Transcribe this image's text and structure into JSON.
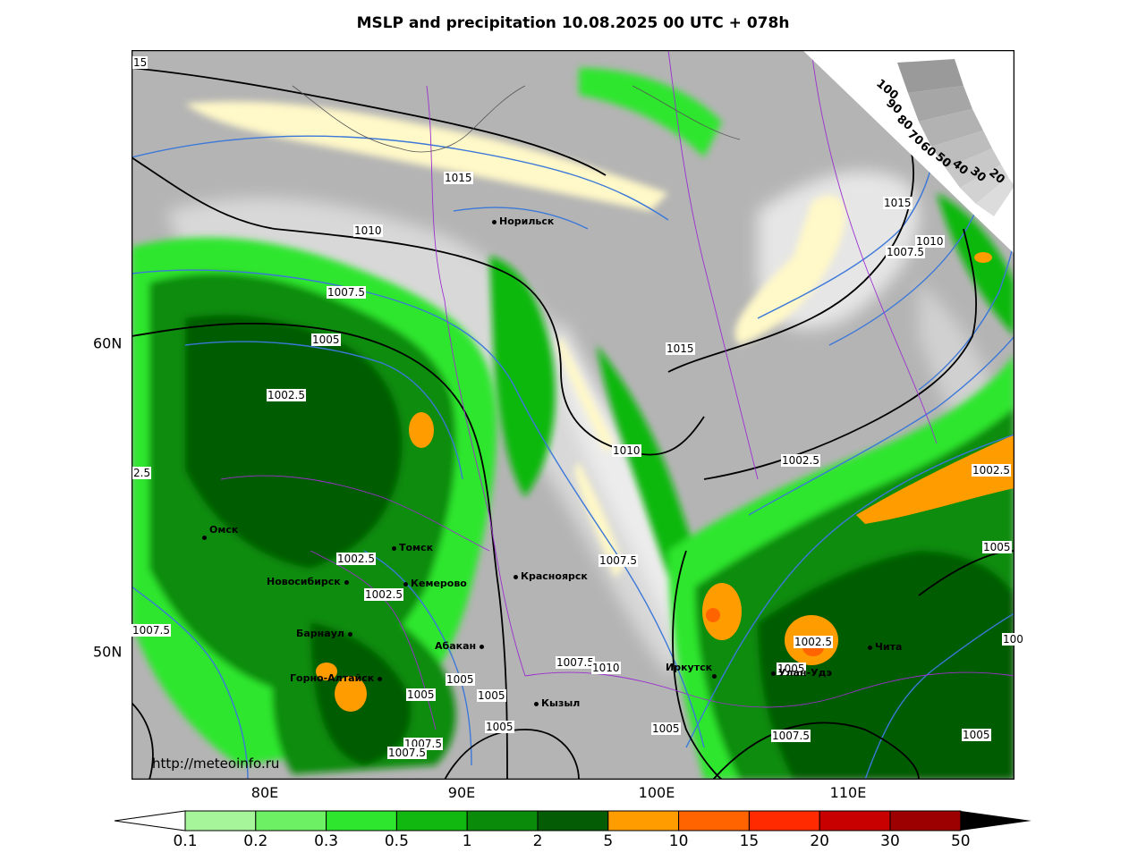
{
  "title": "MSLP and precipitation 10.08.2025 00 UTC + 078h",
  "map": {
    "lon_labels": [
      "80E",
      "90E",
      "100E",
      "110E"
    ],
    "lat_labels": [
      "60N",
      "50N"
    ],
    "url": "http://meteoinfo.ru",
    "cities": [
      "Норильск",
      "Омск",
      "Томск",
      "Новосибирск",
      "Кемерово",
      "Красноярск",
      "Барнаул",
      "Абакан",
      "Горно-Алтайск",
      "Кызыл",
      "Иркутск",
      "Улан-Удэ",
      "Чита"
    ],
    "isobar_labels": [
      "1015",
      "1015",
      "1010",
      "1015",
      "1010",
      "1007.5",
      "1007.5",
      "1005",
      "1015",
      "1002.5",
      "1010",
      "1002.5",
      "2.5",
      "1002.5",
      "1002.5",
      "1005",
      "1007.5",
      "1007.5",
      "1002.5",
      "1005",
      "1002.5",
      "100",
      "1005",
      "1007.5",
      "1005",
      "1005",
      "1005",
      "1007.5",
      "1007.5",
      "1005",
      "1007.5",
      "1010",
      "1005",
      "15"
    ],
    "gauge_labels": [
      "100",
      "90",
      "80",
      "70",
      "60",
      "50",
      "40",
      "30",
      "20"
    ]
  },
  "legend": {
    "ticks": [
      "0.1",
      "0.2",
      "0.3",
      "0.5",
      "1",
      "2",
      "5",
      "10",
      "15",
      "20",
      "30",
      "50"
    ],
    "colors": [
      "#a6f59a",
      "#6ef064",
      "#2ee62e",
      "#10b810",
      "#0a8c0a",
      "#045c04",
      "#ff9c00",
      "#ff6400",
      "#ff2a00",
      "#c80000",
      "#9c0000"
    ],
    "end_color": "#000000"
  }
}
